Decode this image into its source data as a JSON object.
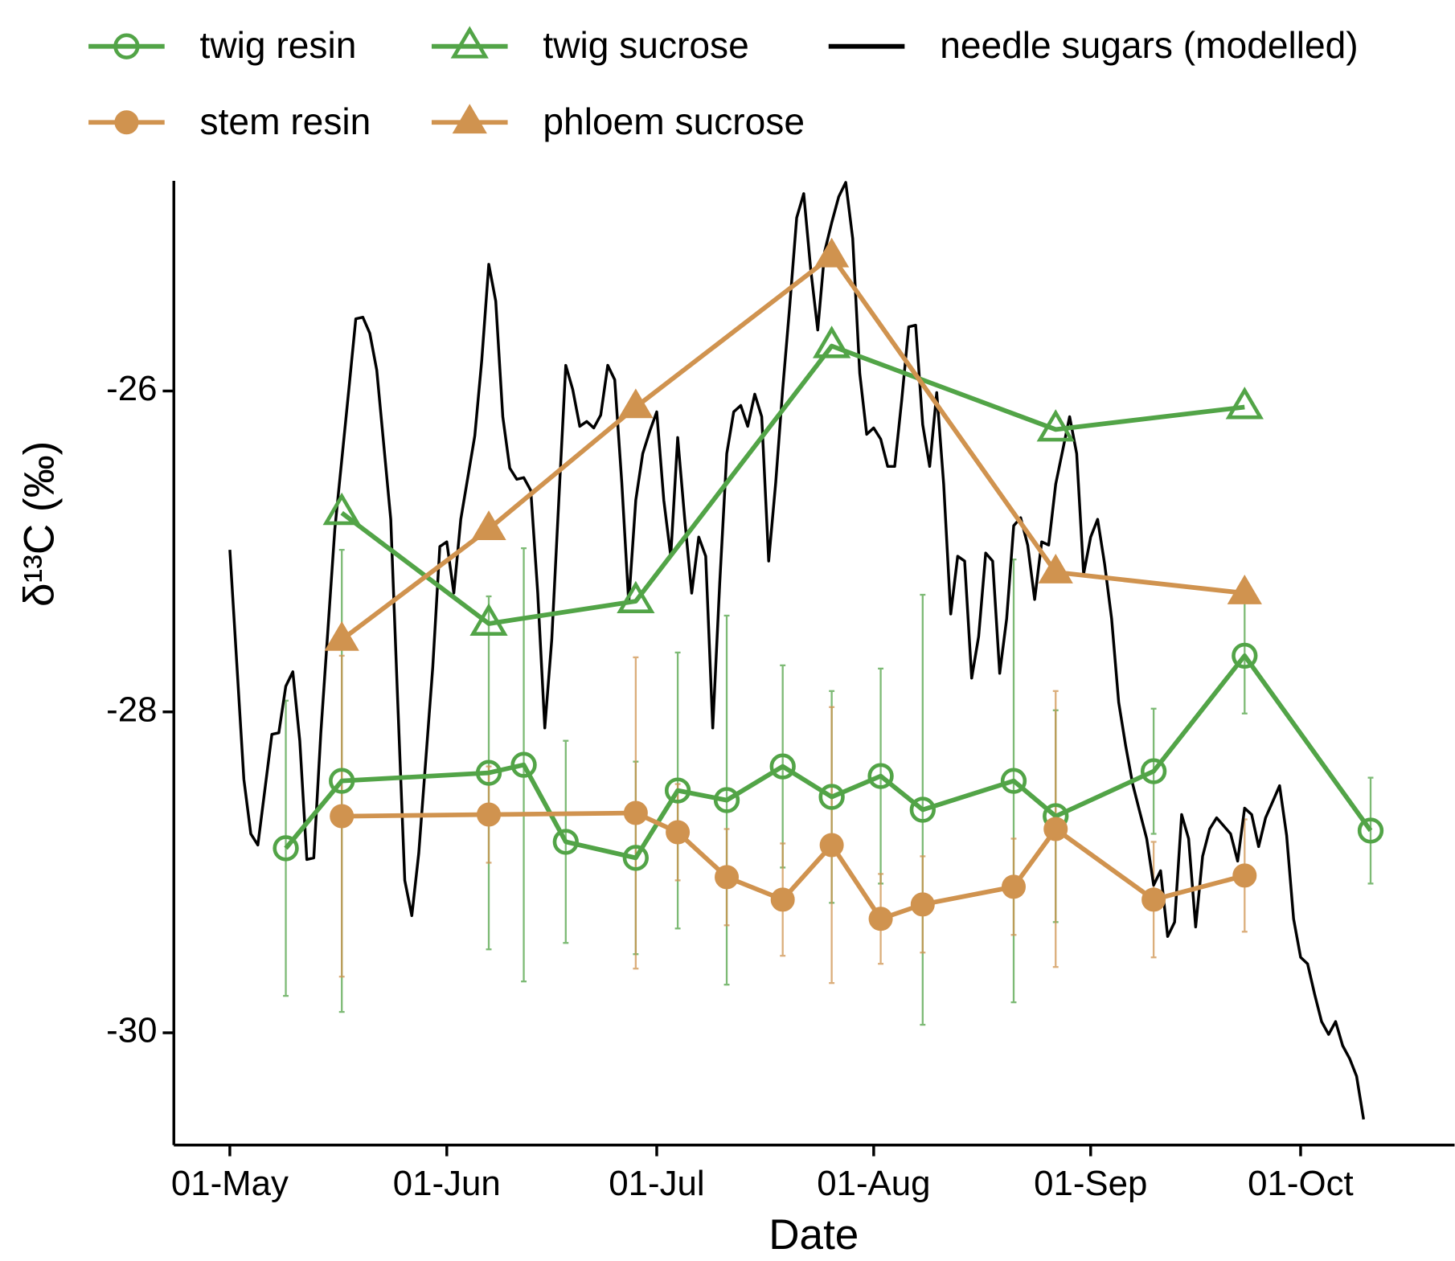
{
  "chart_data": {
    "type": "line",
    "xlabel": "Date",
    "ylabel": "δ¹³C (‰)",
    "xlim": [
      "04-23",
      "10-23"
    ],
    "xticks": [
      {
        "value": "05-01",
        "label": "01-May"
      },
      {
        "value": "06-01",
        "label": "01-Jun"
      },
      {
        "value": "07-01",
        "label": "01-Jul"
      },
      {
        "value": "08-01",
        "label": "01-Aug"
      },
      {
        "value": "09-01",
        "label": "01-Sep"
      },
      {
        "value": "10-01",
        "label": "01-Oct"
      }
    ],
    "ylim": [
      -30.7,
      -24.69
    ],
    "yticks": [
      -30,
      -28,
      -26
    ],
    "grid": false,
    "legend": "top",
    "series": [
      {
        "name": "twig resin",
        "color": "#52a447",
        "marker": "open-circle",
        "x": [
          "05-09",
          "05-17",
          "06-07",
          "06-12",
          "06-18",
          "06-28",
          "07-04",
          "07-11",
          "07-19",
          "07-26",
          "08-02",
          "08-08",
          "08-21",
          "08-27",
          "09-10",
          "09-23",
          "10-11"
        ],
        "values": [
          -28.85,
          -28.43,
          -28.38,
          -28.33,
          -28.81,
          -28.91,
          -28.49,
          -28.55,
          -28.34,
          -28.53,
          -28.4,
          -28.61,
          -28.43,
          -28.65,
          -28.37,
          -27.65,
          -28.74
        ],
        "errors": [
          0.92,
          1.44,
          1.1,
          1.35,
          0.63,
          0.6,
          0.86,
          1.15,
          0.63,
          0.66,
          0.67,
          1.34,
          1.38,
          0.66,
          0.39,
          0.36,
          0.33
        ]
      },
      {
        "name": "stem resin",
        "color": "#d0934f",
        "marker": "filled-circle",
        "x": [
          "05-17",
          "06-07",
          "06-28",
          "07-04",
          "07-11",
          "07-19",
          "07-26",
          "08-02",
          "08-08",
          "08-21",
          "08-27",
          "09-10",
          "09-23"
        ],
        "values": [
          -28.65,
          -28.64,
          -28.63,
          -28.75,
          -29.03,
          -29.17,
          -28.83,
          -29.29,
          -29.2,
          -29.09,
          -28.73,
          -29.17,
          -29.02
        ],
        "errors": [
          1.0,
          0.3,
          0.97,
          0.3,
          0.3,
          0.35,
          0.86,
          0.28,
          0.3,
          0.3,
          0.86,
          0.36,
          0.35
        ]
      },
      {
        "name": "twig sucrose",
        "color": "#52a447",
        "marker": "open-triangle",
        "x": [
          "05-17",
          "06-07",
          "06-28",
          "07-26",
          "08-27",
          "09-23"
        ],
        "values": [
          -26.76,
          -27.45,
          -27.31,
          -25.72,
          -26.24,
          -26.1
        ]
      },
      {
        "name": "phloem sucrose",
        "color": "#d0934f",
        "marker": "filled-triangle",
        "x": [
          "05-17",
          "06-07",
          "06-28",
          "07-26",
          "08-27",
          "09-23"
        ],
        "values": [
          -27.55,
          -26.86,
          -26.1,
          -25.16,
          -27.13,
          -27.26
        ]
      },
      {
        "name": "needle sugars (modelled)",
        "color": "#000000",
        "marker": "none",
        "x": [
          "05-01",
          "05-03",
          "05-04",
          "05-05",
          "05-07",
          "05-08",
          "05-09",
          "05-10",
          "05-11",
          "05-12",
          "05-13",
          "05-14",
          "05-16",
          "05-18",
          "05-19",
          "05-20",
          "05-21",
          "05-22",
          "05-24",
          "05-25",
          "05-26",
          "05-27",
          "05-28",
          "05-30",
          "05-31",
          "06-01",
          "06-02",
          "06-03",
          "06-05",
          "06-06",
          "06-07",
          "06-08",
          "06-09",
          "06-10",
          "06-11",
          "06-12",
          "06-13",
          "06-14",
          "06-15",
          "06-16",
          "06-17",
          "06-18",
          "06-19",
          "06-20",
          "06-21",
          "06-22",
          "06-23",
          "06-24",
          "06-25",
          "06-26",
          "06-27",
          "06-28",
          "06-29",
          "06-30",
          "07-01",
          "07-02",
          "07-03",
          "07-04",
          "07-05",
          "07-06",
          "07-07",
          "07-08",
          "07-09",
          "07-10",
          "07-11",
          "07-12",
          "07-13",
          "07-14",
          "07-15",
          "07-16",
          "07-17",
          "07-18",
          "07-19",
          "07-20",
          "07-21",
          "07-22",
          "07-23",
          "07-24",
          "07-25",
          "07-26",
          "07-27",
          "07-28",
          "07-29",
          "07-30",
          "07-31",
          "08-01",
          "08-02",
          "08-03",
          "08-04",
          "08-05",
          "08-06",
          "08-07",
          "08-08",
          "08-09",
          "08-10",
          "08-11",
          "08-12",
          "08-13",
          "08-14",
          "08-15",
          "08-16",
          "08-17",
          "08-18",
          "08-19",
          "08-20",
          "08-21",
          "08-22",
          "08-23",
          "08-24",
          "08-25",
          "08-26",
          "08-27",
          "08-29",
          "08-30",
          "08-31",
          "09-01",
          "09-02",
          "09-03",
          "09-04",
          "09-05",
          "09-06",
          "09-07",
          "09-08",
          "09-09",
          "09-10",
          "09-11",
          "09-12",
          "09-13",
          "09-14",
          "09-15",
          "09-16",
          "09-17",
          "09-18",
          "09-19",
          "09-21",
          "09-22",
          "09-23",
          "09-24",
          "09-25",
          "09-26",
          "09-27",
          "09-28",
          "09-29",
          "09-30",
          "10-01",
          "10-02",
          "10-03",
          "10-04",
          "10-05",
          "10-06",
          "10-07",
          "10-08",
          "10-09",
          "10-10"
        ],
        "values": [
          -26.99,
          -28.42,
          -28.76,
          -28.83,
          -28.14,
          -28.13,
          -27.84,
          -27.75,
          -28.18,
          -28.92,
          -28.91,
          -28.13,
          -26.86,
          -25.99,
          -25.55,
          -25.54,
          -25.64,
          -25.87,
          -26.8,
          -27.95,
          -29.05,
          -29.27,
          -28.88,
          -27.72,
          -26.97,
          -26.94,
          -27.26,
          -26.8,
          -26.28,
          -25.81,
          -25.21,
          -25.44,
          -26.16,
          -26.48,
          -26.55,
          -26.54,
          -26.62,
          -27.26,
          -28.1,
          -27.55,
          -26.68,
          -25.84,
          -25.99,
          -26.22,
          -26.19,
          -26.23,
          -26.15,
          -25.84,
          -25.93,
          -26.57,
          -27.32,
          -26.68,
          -26.39,
          -26.25,
          -26.13,
          -26.68,
          -27.03,
          -26.29,
          -26.8,
          -27.26,
          -26.91,
          -27.03,
          -28.1,
          -27.2,
          -26.39,
          -26.13,
          -26.09,
          -26.22,
          -26.02,
          -26.16,
          -27.06,
          -26.57,
          -25.99,
          -25.47,
          -24.92,
          -24.77,
          -25.24,
          -25.62,
          -25.13,
          -24.95,
          -24.79,
          -24.7,
          -25.05,
          -25.89,
          -26.27,
          -26.23,
          -26.3,
          -26.47,
          -26.47,
          -26.06,
          -25.6,
          -25.59,
          -26.21,
          -26.47,
          -26.01,
          -26.58,
          -27.39,
          -27.03,
          -27.06,
          -27.79,
          -27.53,
          -27.01,
          -27.06,
          -27.76,
          -27.42,
          -26.84,
          -26.79,
          -26.96,
          -27.3,
          -26.94,
          -26.96,
          -26.58,
          -26.16,
          -26.39,
          -27.14,
          -26.91,
          -26.8,
          -27.08,
          -27.42,
          -27.94,
          -28.21,
          -28.45,
          -28.62,
          -28.79,
          -29.08,
          -28.99,
          -29.4,
          -29.31,
          -28.64,
          -28.79,
          -29.34,
          -28.9,
          -28.73,
          -28.66,
          -28.76,
          -28.93,
          -28.6,
          -28.64,
          -28.84,
          -28.66,
          -28.56,
          -28.46,
          -28.77,
          -29.29,
          -29.53,
          -29.57,
          -29.76,
          -29.93,
          -30.01,
          -29.93,
          -30.08,
          -30.16,
          -30.27,
          -30.54
        ]
      }
    ]
  }
}
